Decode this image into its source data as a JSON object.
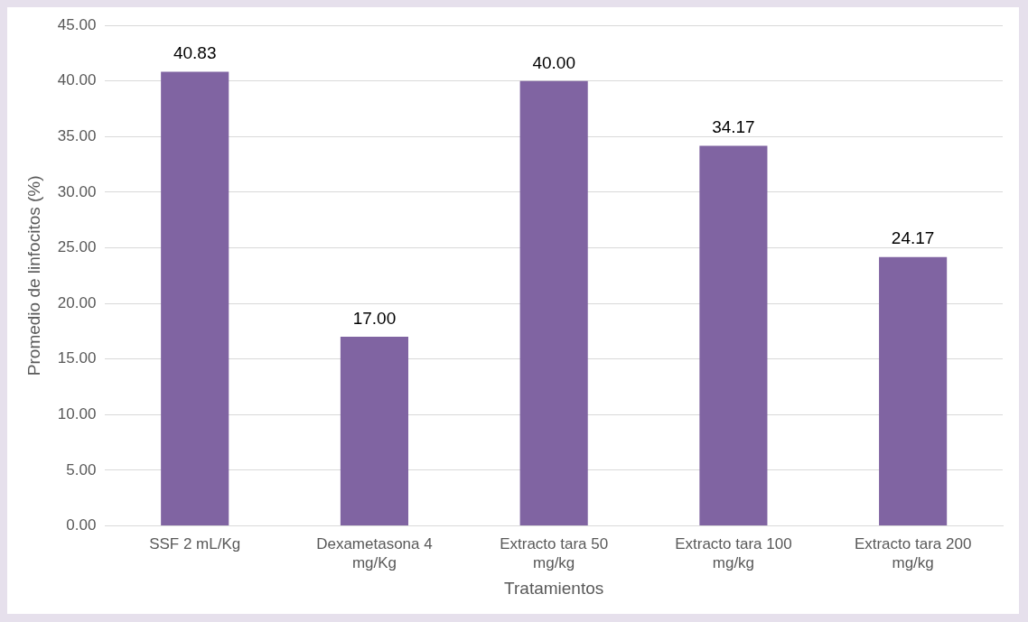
{
  "chart_data": {
    "type": "bar",
    "xlabel": "Tratamientos",
    "ylabel": "Promedio de linfocitos (%)",
    "categories": [
      "SSF 2 mL/Kg",
      "Dexametasona 4 mg/Kg",
      "Extracto tara 50 mg/kg",
      "Extracto tara 100 mg/kg",
      "Extracto tara 200 mg/kg"
    ],
    "values": [
      40.83,
      17.0,
      40.0,
      34.17,
      24.17
    ],
    "value_labels": [
      "40.83",
      "17.00",
      "40.00",
      "34.17",
      "24.17"
    ],
    "color": "#8064a2",
    "ylim": [
      0,
      45
    ],
    "yticks": [
      {
        "value": 0,
        "label": "0.00"
      },
      {
        "value": 5,
        "label": "5.00"
      },
      {
        "value": 10,
        "label": "10.00"
      },
      {
        "value": 15,
        "label": "15.00"
      },
      {
        "value": 20,
        "label": "20.00"
      },
      {
        "value": 25,
        "label": "25.00"
      },
      {
        "value": 30,
        "label": "30.00"
      },
      {
        "value": 35,
        "label": "35.00"
      },
      {
        "value": 40,
        "label": "40.00"
      },
      {
        "value": 45,
        "label": "45.00"
      }
    ],
    "grid": "y",
    "legend": false
  }
}
